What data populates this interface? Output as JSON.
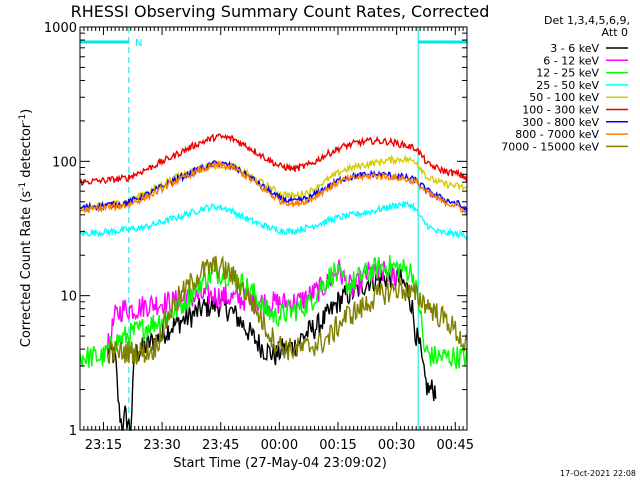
{
  "chart_data": {
    "type": "line",
    "title": "RHESSI Observing Summary Count Rates, Corrected",
    "xlabel": "Start Time (27-May-04 23:09:02)",
    "ylabel_main": "Corrected Count Rate (s",
    "ylabel_sup1": "-1",
    "ylabel_mid": " detector",
    "ylabel_sup2": "-1",
    "ylabel_end": ")",
    "y_scale": "log",
    "ylim": [
      1,
      1000
    ],
    "xlim_minutes": [
      0,
      99
    ],
    "x_ticks": [
      {
        "label": "23:15",
        "minute": 6
      },
      {
        "label": "23:30",
        "minute": 21
      },
      {
        "label": "23:45",
        "minute": 36
      },
      {
        "label": "00:00",
        "minute": 51
      },
      {
        "label": "00:15",
        "minute": 66
      },
      {
        "label": "00:30",
        "minute": 81
      },
      {
        "label": "00:45",
        "minute": 96
      }
    ],
    "y_ticks": [
      {
        "label": "1",
        "value": 1
      },
      {
        "label": "10",
        "value": 10
      },
      {
        "label": "100",
        "value": 100
      },
      {
        "label": "1000",
        "value": 1000
      }
    ],
    "grid": false,
    "legend_position": "right",
    "legend_header": [
      "Det 1,3,4,5,6,9,",
      "Att 0"
    ],
    "footer": "17-Oct-2021 22:08",
    "markers": {
      "night_label": "N",
      "night_bars": [
        [
          0,
          12.5
        ],
        [
          86.5,
          99
        ]
      ],
      "lines": [
        {
          "minute": 0,
          "style": "solid"
        },
        {
          "minute": 12.5,
          "style": "dashed"
        },
        {
          "minute": 86.5,
          "style": "solid"
        },
        {
          "minute": 99,
          "style": "dashed"
        }
      ],
      "color": "#00e5e5"
    },
    "series": [
      {
        "name": "3 - 6 keV",
        "color": "#000000",
        "points": [
          [
            7,
            4
          ],
          [
            9,
            3.5
          ],
          [
            10,
            1.4
          ],
          [
            11,
            1
          ],
          [
            11.5,
            1.3
          ],
          [
            12,
            1.2
          ],
          [
            13,
            1
          ],
          [
            14,
            3.8
          ],
          [
            15,
            3.8
          ],
          [
            18,
            4.5
          ],
          [
            20,
            4.8
          ],
          [
            23,
            5.8
          ],
          [
            26,
            6.5
          ],
          [
            29,
            7.2
          ],
          [
            31,
            8
          ],
          [
            34,
            8.5
          ],
          [
            36,
            8.5
          ],
          [
            39,
            7.5
          ],
          [
            41,
            6.5
          ],
          [
            44,
            5
          ],
          [
            47,
            4
          ],
          [
            50,
            3.6
          ],
          [
            52,
            4
          ],
          [
            55,
            4.2
          ],
          [
            57,
            5
          ],
          [
            59,
            5.5
          ],
          [
            61,
            6
          ],
          [
            64,
            7.5
          ],
          [
            66,
            9
          ],
          [
            68,
            10
          ],
          [
            71,
            11
          ],
          [
            74,
            13
          ],
          [
            76,
            13
          ],
          [
            78,
            13.5
          ],
          [
            80,
            14
          ],
          [
            82,
            13
          ],
          [
            84,
            11
          ],
          [
            85,
            8
          ],
          [
            86,
            5
          ],
          [
            87,
            4
          ],
          [
            88,
            2.5
          ],
          [
            89,
            2
          ],
          [
            90,
            2
          ],
          [
            91,
            2
          ]
        ]
      },
      {
        "name": "6 - 12 keV",
        "color": "#ff00ff",
        "points": [
          [
            7,
            4
          ],
          [
            9,
            7
          ],
          [
            11,
            8
          ],
          [
            14,
            8
          ],
          [
            17,
            8.5
          ],
          [
            20,
            8.8
          ],
          [
            24,
            9
          ],
          [
            28,
            9.5
          ],
          [
            31,
            10
          ],
          [
            34,
            10
          ],
          [
            37,
            9.8
          ],
          [
            40,
            9.5
          ],
          [
            43,
            9.3
          ],
          [
            46,
            9
          ],
          [
            49,
            8.8
          ],
          [
            52,
            8.8
          ],
          [
            56,
            9
          ],
          [
            60,
            10.5
          ],
          [
            63,
            12
          ],
          [
            66,
            16
          ],
          [
            68,
            12.5
          ],
          [
            70,
            11
          ],
          [
            72,
            13
          ],
          [
            74,
            15
          ],
          [
            76,
            14
          ],
          [
            78,
            15
          ],
          [
            80,
            14
          ],
          [
            81,
            14.2
          ]
        ]
      },
      {
        "name": "12 - 25 keV",
        "color": "#00ff00",
        "points": [
          [
            0,
            3.5
          ],
          [
            3,
            3.5
          ],
          [
            6,
            3.5
          ],
          [
            9,
            4.5
          ],
          [
            12,
            5
          ],
          [
            15,
            5.5
          ],
          [
            20,
            6.5
          ],
          [
            25,
            8
          ],
          [
            28,
            10
          ],
          [
            30,
            12
          ],
          [
            33,
            14
          ],
          [
            36,
            15
          ],
          [
            39,
            14
          ],
          [
            42,
            12
          ],
          [
            45,
            10
          ],
          [
            47,
            8
          ],
          [
            50,
            7
          ],
          [
            53,
            7.5
          ],
          [
            56,
            8
          ],
          [
            59,
            9
          ],
          [
            61,
            11
          ],
          [
            63,
            13
          ],
          [
            65,
            15
          ],
          [
            67,
            13
          ],
          [
            69,
            12
          ],
          [
            72,
            14
          ],
          [
            74,
            15
          ],
          [
            76,
            16
          ],
          [
            79,
            16.5
          ],
          [
            82,
            16
          ],
          [
            85,
            15
          ],
          [
            87,
            8
          ],
          [
            88,
            4
          ],
          [
            90,
            3.5
          ],
          [
            93,
            3.5
          ],
          [
            96,
            3.5
          ],
          [
            99,
            3.5
          ]
        ]
      },
      {
        "name": "25 - 50 keV",
        "color": "#00ffff",
        "points": [
          [
            0,
            29
          ],
          [
            8,
            30
          ],
          [
            16,
            32
          ],
          [
            22,
            36
          ],
          [
            28,
            41
          ],
          [
            32,
            45
          ],
          [
            35,
            46
          ],
          [
            38,
            44
          ],
          [
            42,
            38
          ],
          [
            46,
            34
          ],
          [
            50,
            31
          ],
          [
            54,
            30
          ],
          [
            58,
            32
          ],
          [
            62,
            35
          ],
          [
            66,
            38
          ],
          [
            70,
            40
          ],
          [
            74,
            42
          ],
          [
            78,
            45
          ],
          [
            82,
            48
          ],
          [
            85,
            47
          ],
          [
            88,
            35
          ],
          [
            91,
            30
          ],
          [
            95,
            29
          ],
          [
            99,
            28
          ]
        ]
      },
      {
        "name": "50 - 100 keV",
        "color": "#d4cc00",
        "points": [
          [
            0,
            45
          ],
          [
            6,
            47
          ],
          [
            12,
            50
          ],
          [
            18,
            60
          ],
          [
            24,
            75
          ],
          [
            30,
            88
          ],
          [
            35,
            94
          ],
          [
            39,
            92
          ],
          [
            43,
            80
          ],
          [
            47,
            68
          ],
          [
            51,
            58
          ],
          [
            55,
            55
          ],
          [
            59,
            60
          ],
          [
            63,
            72
          ],
          [
            67,
            85
          ],
          [
            71,
            92
          ],
          [
            75,
            97
          ],
          [
            79,
            102
          ],
          [
            83,
            104
          ],
          [
            86,
            100
          ],
          [
            89,
            75
          ],
          [
            93,
            68
          ],
          [
            97,
            65
          ],
          [
            99,
            63
          ]
        ]
      },
      {
        "name": "100 - 300 keV",
        "color": "#ee0000",
        "points": [
          [
            0,
            70
          ],
          [
            6,
            72
          ],
          [
            12,
            75
          ],
          [
            18,
            90
          ],
          [
            24,
            110
          ],
          [
            30,
            135
          ],
          [
            35,
            153
          ],
          [
            39,
            148
          ],
          [
            43,
            128
          ],
          [
            47,
            108
          ],
          [
            51,
            92
          ],
          [
            55,
            88
          ],
          [
            59,
            95
          ],
          [
            63,
            112
          ],
          [
            67,
            128
          ],
          [
            71,
            138
          ],
          [
            75,
            142
          ],
          [
            79,
            140
          ],
          [
            83,
            132
          ],
          [
            86,
            125
          ],
          [
            89,
            95
          ],
          [
            93,
            85
          ],
          [
            97,
            80
          ],
          [
            99,
            75
          ]
        ]
      },
      {
        "name": "300 - 800 keV",
        "color": "#0000ff",
        "points": [
          [
            0,
            45
          ],
          [
            6,
            47
          ],
          [
            12,
            49
          ],
          [
            18,
            58
          ],
          [
            24,
            72
          ],
          [
            30,
            86
          ],
          [
            35,
            97
          ],
          [
            39,
            92
          ],
          [
            43,
            78
          ],
          [
            47,
            64
          ],
          [
            51,
            53
          ],
          [
            55,
            50
          ],
          [
            59,
            54
          ],
          [
            63,
            64
          ],
          [
            67,
            74
          ],
          [
            71,
            78
          ],
          [
            75,
            80
          ],
          [
            79,
            79
          ],
          [
            83,
            76
          ],
          [
            86,
            72
          ],
          [
            89,
            60
          ],
          [
            93,
            52
          ],
          [
            97,
            48
          ],
          [
            99,
            42
          ]
        ]
      },
      {
        "name": "800 - 7000 keV",
        "color": "#ff8000",
        "points": [
          [
            0,
            43
          ],
          [
            6,
            45
          ],
          [
            12,
            47
          ],
          [
            18,
            56
          ],
          [
            24,
            70
          ],
          [
            30,
            84
          ],
          [
            35,
            94
          ],
          [
            39,
            90
          ],
          [
            43,
            76
          ],
          [
            47,
            62
          ],
          [
            51,
            51
          ],
          [
            55,
            48
          ],
          [
            59,
            52
          ],
          [
            63,
            62
          ],
          [
            67,
            72
          ],
          [
            71,
            76
          ],
          [
            75,
            78
          ],
          [
            79,
            77
          ],
          [
            83,
            74
          ],
          [
            86,
            70
          ],
          [
            89,
            58
          ],
          [
            93,
            50
          ],
          [
            97,
            46
          ],
          [
            99,
            40
          ]
        ]
      },
      {
        "name": "7000 - 15000 keV",
        "color": "#808000",
        "points": [
          [
            7,
            3.8
          ],
          [
            12,
            3.8
          ],
          [
            16,
            3.8
          ],
          [
            19,
            4
          ],
          [
            21,
            5.5
          ],
          [
            23,
            7.5
          ],
          [
            25,
            9.5
          ],
          [
            27,
            11
          ],
          [
            29,
            13
          ],
          [
            31,
            15
          ],
          [
            33,
            16
          ],
          [
            35,
            16.5
          ],
          [
            38,
            15
          ],
          [
            41,
            12
          ],
          [
            44,
            9
          ],
          [
            46,
            7
          ],
          [
            48,
            5.5
          ],
          [
            50,
            4.5
          ],
          [
            53,
            4
          ],
          [
            56,
            4
          ],
          [
            59,
            4.2
          ],
          [
            62,
            4.5
          ],
          [
            64,
            5
          ],
          [
            66,
            6
          ],
          [
            68,
            7
          ],
          [
            70,
            7.5
          ],
          [
            72,
            8
          ],
          [
            74,
            9
          ],
          [
            76,
            10
          ],
          [
            78,
            10.5
          ],
          [
            80,
            11
          ],
          [
            82,
            11.5
          ],
          [
            84,
            10.5
          ],
          [
            86,
            10
          ],
          [
            88,
            9
          ],
          [
            90,
            8
          ],
          [
            92,
            7
          ],
          [
            94,
            6.5
          ],
          [
            96,
            5.5
          ],
          [
            98,
            4.5
          ],
          [
            99,
            4
          ]
        ]
      }
    ]
  }
}
